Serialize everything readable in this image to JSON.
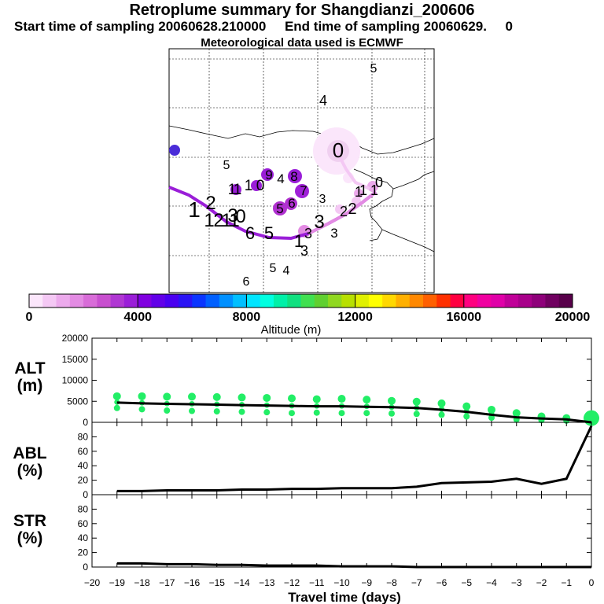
{
  "header": {
    "title": "Retroplume summary for Shangdianzi_200606",
    "line2": "Start time of sampling 20060628.210000     End time of sampling 20060629.     0",
    "line3": "Meteorological data used is ECMWF"
  },
  "colorbar": {
    "ticks": [
      "0",
      "4000",
      "8000",
      "12000",
      "16000",
      "20000"
    ],
    "label": "Altitude (m)",
    "colors": [
      "#fbe6fb",
      "#f4c8f4",
      "#ecaaec",
      "#e38be3",
      "#d86cd8",
      "#c84fcf",
      "#b037d3",
      "#9a1ed8",
      "#8000e0",
      "#6200e8",
      "#4a00f0",
      "#2a14f5",
      "#0a35ff",
      "#0060ff",
      "#0090ff",
      "#00bfff",
      "#00e5ff",
      "#00ffe0",
      "#00f0a8",
      "#10e080",
      "#40e050",
      "#60d030",
      "#90d820",
      "#b8e000",
      "#e0f000",
      "#ffff00",
      "#ffd800",
      "#ffb000",
      "#ff8800",
      "#ff6000",
      "#ff3000",
      "#ff0040",
      "#ff0080",
      "#f000a0",
      "#e000a8",
      "#c00098",
      "#a8008a",
      "#8e007a",
      "#700060",
      "#58004a"
    ]
  },
  "map": {
    "labels": [
      "5",
      "4",
      "0",
      "5",
      "9",
      "4",
      "8",
      "1",
      "1",
      "1",
      "0",
      "7",
      "3",
      "1",
      "2",
      "3",
      "2",
      "5",
      "6",
      "1",
      "2",
      "1",
      "1",
      "0",
      "3",
      "2",
      "1",
      "1",
      "1",
      "0",
      "6",
      "5",
      "1",
      "3",
      "3",
      "3",
      "5",
      "4",
      "6"
    ]
  },
  "panels": {
    "alt": {
      "label_top": "ALT",
      "label_bottom": "(m)",
      "ticks": [
        "20000",
        "15000",
        "10000",
        "5000",
        "0"
      ]
    },
    "abl": {
      "label_top": "ABL",
      "label_bottom": "(%)",
      "ticks": [
        "80",
        "60",
        "40",
        "20",
        "0"
      ]
    },
    "str": {
      "label_top": "STR",
      "label_bottom": "(%)",
      "ticks": [
        "80",
        "60",
        "40",
        "20",
        "0"
      ]
    }
  },
  "chart_data": [
    {
      "type": "line",
      "title": "ALT (m)",
      "xlabel": "Travel time (days)",
      "ylabel": "ALT (m)",
      "xlim": [
        -20,
        0
      ],
      "ylim": [
        0,
        20000
      ],
      "x": [
        -19,
        -18,
        -17,
        -16,
        -15,
        -14,
        -13,
        -12,
        -11,
        -10,
        -9,
        -8,
        -7,
        -6,
        -5,
        -4,
        -3,
        -2,
        -1,
        0
      ],
      "series": [
        {
          "name": "mean altitude",
          "values": [
            4700,
            4500,
            4400,
            4300,
            4200,
            4100,
            4000,
            3900,
            3800,
            3800,
            3700,
            3600,
            3400,
            3000,
            2500,
            1800,
            1200,
            900,
            700,
            0
          ]
        },
        {
          "name": "cluster altitude (max)",
          "values": [
            6200,
            6200,
            6100,
            6100,
            6000,
            5900,
            5800,
            5700,
            5500,
            5600,
            5400,
            5100,
            4900,
            4500,
            3800,
            3000,
            2200,
            1400,
            1000,
            1500
          ]
        },
        {
          "name": "cluster altitude (min)",
          "values": [
            3400,
            3100,
            2800,
            2700,
            2600,
            2500,
            2400,
            2200,
            2300,
            2200,
            2200,
            2100,
            2000,
            1800,
            1400,
            1100,
            700,
            500,
            400,
            800
          ]
        }
      ]
    },
    {
      "type": "line",
      "title": "ABL (%)",
      "xlim": [
        -20,
        0
      ],
      "ylim": [
        0,
        100
      ],
      "x": [
        -19,
        -18,
        -17,
        -16,
        -15,
        -14,
        -13,
        -12,
        -11,
        -10,
        -9,
        -8,
        -7,
        -6,
        -5,
        -4,
        -3,
        -2,
        -1,
        0
      ],
      "series": [
        {
          "name": "ABL fraction",
          "values": [
            5,
            5,
            6,
            6,
            6,
            7,
            7,
            8,
            8,
            9,
            9,
            9,
            11,
            16,
            17,
            18,
            22,
            15,
            22,
            95
          ]
        }
      ]
    },
    {
      "type": "line",
      "title": "STR (%)",
      "xlim": [
        -20,
        0
      ],
      "ylim": [
        0,
        100
      ],
      "x": [
        -19,
        -18,
        -17,
        -16,
        -15,
        -14,
        -13,
        -12,
        -11,
        -10,
        -9,
        -8,
        -7,
        -6,
        -5,
        -4,
        -3,
        -2,
        -1,
        0
      ],
      "series": [
        {
          "name": "STR fraction",
          "values": [
            5,
            5,
            4,
            4,
            3,
            3,
            2,
            2,
            2,
            1,
            1,
            1,
            0,
            0,
            0,
            0,
            0,
            0,
            0,
            0
          ]
        }
      ]
    }
  ],
  "xaxis": {
    "ticks": [
      "−20",
      "−19",
      "−18",
      "−17",
      "−16",
      "−15",
      "−14",
      "−13",
      "−12",
      "−11",
      "−10",
      "−9",
      "−8",
      "−7",
      "−6",
      "−5",
      "−4",
      "−3",
      "−2",
      "−1",
      "0"
    ],
    "label": "Travel time (days)"
  }
}
